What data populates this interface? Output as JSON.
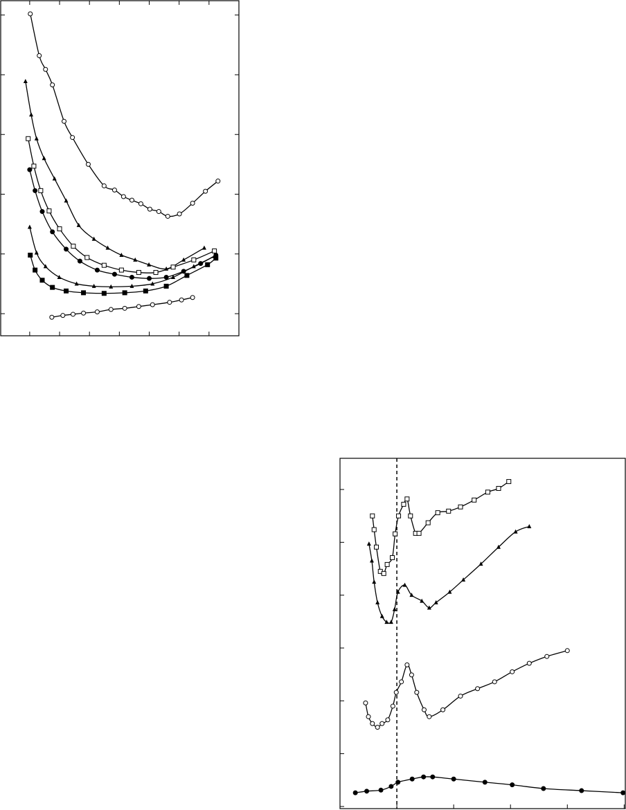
{
  "chart_data": [
    {
      "type": "line",
      "grid": false,
      "xlim": [
        -0.97,
        7.0
      ],
      "xticks": [
        0,
        1,
        2,
        3,
        4,
        5,
        6
      ],
      "ylim": [
        -0.37,
        5.24
      ],
      "yticks": [
        0,
        1,
        2,
        3,
        4,
        5
      ],
      "series": [
        {
          "color": "#000",
          "marker": "circle-open",
          "x": [
            0.02,
            0.32,
            0.53,
            0.76,
            1.15,
            1.43,
            1.96,
            2.49,
            2.84,
            3.14,
            3.42,
            3.72,
            4.02,
            4.32,
            4.62,
            5.01,
            5.45,
            5.88,
            6.3
          ],
          "values": [
            5.02,
            4.32,
            4.09,
            3.83,
            3.22,
            2.95,
            2.5,
            2.14,
            2.07,
            1.96,
            1.9,
            1.84,
            1.75,
            1.71,
            1.63,
            1.67,
            1.85,
            2.05,
            2.22
          ]
        },
        {
          "color": "#000",
          "marker": "triangle",
          "x": [
            -0.14,
            0.05,
            0.23,
            0.48,
            0.83,
            1.22,
            1.64,
            2.15,
            2.61,
            3.07,
            3.53,
            3.99,
            4.57,
            5.15,
            5.84
          ],
          "values": [
            3.89,
            3.33,
            2.93,
            2.6,
            2.26,
            1.89,
            1.48,
            1.25,
            1.1,
            0.98,
            0.9,
            0.82,
            0.75,
            0.9,
            1.1
          ]
        },
        {
          "color": "#000",
          "marker": "square-open",
          "x": [
            -0.05,
            0.14,
            0.37,
            0.65,
            1.0,
            1.46,
            1.92,
            2.49,
            3.07,
            3.65,
            4.22,
            4.8,
            5.49,
            6.18
          ],
          "values": [
            2.93,
            2.47,
            2.06,
            1.72,
            1.42,
            1.13,
            0.94,
            0.81,
            0.73,
            0.69,
            0.69,
            0.78,
            0.9,
            1.05
          ]
        },
        {
          "color": "#000",
          "marker": "circle-filled",
          "x": [
            0,
            0.18,
            0.42,
            0.76,
            1.22,
            1.68,
            2.26,
            2.84,
            3.42,
            4.0,
            4.57,
            5.15,
            5.72,
            6.23
          ],
          "values": [
            2.41,
            2.06,
            1.71,
            1.37,
            1.08,
            0.88,
            0.73,
            0.66,
            0.61,
            0.59,
            0.61,
            0.71,
            0.84,
            0.98
          ]
        },
        {
          "color": "#000",
          "marker": "triangle",
          "x": [
            0,
            0.23,
            0.53,
            0.99,
            1.57,
            2.15,
            2.72,
            3.42,
            4.11,
            4.8,
            5.49,
            6.18
          ],
          "values": [
            1.45,
            1.02,
            0.79,
            0.61,
            0.5,
            0.46,
            0.45,
            0.46,
            0.5,
            0.61,
            0.79,
            0.96
          ]
        },
        {
          "color": "#000",
          "marker": "square-filled",
          "x": [
            0.02,
            0.18,
            0.42,
            0.76,
            1.22,
            1.8,
            2.49,
            3.18,
            3.88,
            4.57,
            5.26,
            5.95,
            6.23
          ],
          "values": [
            0.98,
            0.73,
            0.56,
            0.44,
            0.38,
            0.35,
            0.34,
            0.35,
            0.38,
            0.46,
            0.64,
            0.82,
            0.93
          ]
        },
        {
          "color": "#000",
          "marker": "circle-open",
          "x": [
            0.74,
            1.11,
            1.45,
            1.8,
            2.26,
            2.72,
            3.18,
            3.65,
            4.11,
            4.68,
            5.08,
            5.45
          ],
          "values": [
            -0.06,
            -0.03,
            -0.01,
            0.01,
            0.03,
            0.07,
            0.09,
            0.12,
            0.15,
            0.19,
            0.23,
            0.27
          ]
        }
      ]
    },
    {
      "type": "line",
      "grid": false,
      "vline": 1,
      "xlim": [
        0,
        5.02
      ],
      "xticks": [
        0,
        1,
        2,
        3,
        4,
        5
      ],
      "ylim": [
        -0.04,
        6.59
      ],
      "yticks": [
        0,
        1,
        2,
        3,
        4,
        5,
        6
      ],
      "series": [
        {
          "color": "#000",
          "marker": "square-open",
          "x": [
            0.57,
            0.6,
            0.64,
            0.71,
            0.77,
            0.83,
            0.92,
            0.97,
            1.03,
            1.12,
            1.18,
            1.24,
            1.33,
            1.39,
            1.55,
            1.72,
            1.91,
            2.12,
            2.36,
            2.6,
            2.79,
            2.97
          ],
          "values": [
            5.5,
            5.24,
            4.91,
            4.45,
            4.41,
            4.58,
            4.71,
            5.16,
            5.5,
            5.72,
            5.82,
            5.5,
            5.17,
            5.17,
            5.37,
            5.56,
            5.59,
            5.67,
            5.8,
            5.95,
            6.02,
            6.15
          ]
        },
        {
          "color": "#000",
          "marker": "triangle",
          "x": [
            0.51,
            0.56,
            0.6,
            0.66,
            0.74,
            0.82,
            0.9,
            0.96,
            1.02,
            1.14,
            1.26,
            1.44,
            1.57,
            1.69,
            1.93,
            2.17,
            2.48,
            2.79,
            3.09,
            3.33
          ],
          "values": [
            4.97,
            4.65,
            4.25,
            3.86,
            3.6,
            3.49,
            3.49,
            3.73,
            4.06,
            4.19,
            4.0,
            3.89,
            3.76,
            3.86,
            4.06,
            4.29,
            4.59,
            4.91,
            5.2,
            5.3
          ]
        },
        {
          "color": "#000",
          "marker": "circle-open",
          "x": [
            0.45,
            0.5,
            0.57,
            0.66,
            0.74,
            0.84,
            0.93,
            0.99,
            1.08,
            1.18,
            1.26,
            1.35,
            1.48,
            1.57,
            1.81,
            2.12,
            2.42,
            2.72,
            3.03,
            3.33,
            3.64,
            4.0
          ],
          "values": [
            1.96,
            1.7,
            1.57,
            1.5,
            1.57,
            1.64,
            1.9,
            2.16,
            2.36,
            2.68,
            2.49,
            2.16,
            1.83,
            1.7,
            1.83,
            2.09,
            2.23,
            2.36,
            2.55,
            2.71,
            2.84,
            2.95
          ]
        },
        {
          "color": "#000",
          "marker": "circle-filled",
          "x": [
            0.27,
            0.47,
            0.72,
            0.9,
            1.02,
            1.27,
            1.47,
            1.63,
            2.0,
            2.55,
            3.03,
            3.58,
            4.25,
            4.98
          ],
          "values": [
            0.26,
            0.29,
            0.31,
            0.38,
            0.46,
            0.52,
            0.56,
            0.56,
            0.52,
            0.46,
            0.41,
            0.34,
            0.3,
            0.26
          ]
        }
      ]
    }
  ]
}
